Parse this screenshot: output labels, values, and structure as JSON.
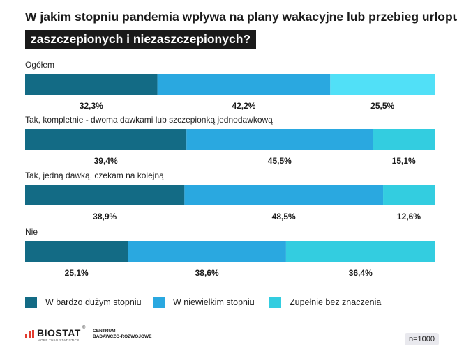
{
  "title": {
    "line1": "W jakim stopniu pandemia wpływa na plany wakacyjne lub przebieg urlopu",
    "line2": "zaszczepionych i niezaszczepionych?"
  },
  "colors": {
    "series": [
      "#136b85",
      "#2aa8e0",
      "#51e0f7",
      "#33cde0"
    ]
  },
  "chart_data": {
    "type": "bar",
    "orientation": "horizontal-stacked",
    "title": "W jakim stopniu pandemia wpływa na plany wakacyjne lub przebieg urlopu zaszczepionych i niezaszczepionych?",
    "categories": [
      "Ogółem",
      "Tak, kompletnie - dwoma dawkami lub szczepionką jednodawkową",
      "Tak, jedną dawką, czekam na kolejną",
      "Nie"
    ],
    "series": [
      {
        "name": "W bardzo dużym stopniu",
        "values": [
          32.3,
          39.4,
          38.9,
          25.1
        ],
        "labels": [
          "32,3%",
          "39,4%",
          "38,9%",
          "25,1%"
        ]
      },
      {
        "name": "W niewielkim stopniu",
        "values": [
          42.2,
          45.5,
          48.5,
          38.6
        ],
        "labels": [
          "42,2%",
          "45,5%",
          "48,5%",
          "38,6%"
        ]
      },
      {
        "name": "Zupełnie bez znaczenia",
        "values": [
          25.5,
          15.1,
          12.6,
          36.4
        ],
        "labels": [
          "25,5%",
          "15,1%",
          "12,6%",
          "36,4%"
        ]
      }
    ],
    "xlim": [
      0,
      100
    ],
    "unit": "%"
  },
  "legend": {
    "items": [
      "W bardzo dużym stopniu",
      "W niewielkim stopniu",
      "Zupełnie bez znaczenia"
    ]
  },
  "footer": {
    "brand": "BIOSTAT",
    "registered": "®",
    "tagline": "MORE THAN STATISTICS",
    "sub_line1": "CENTRUM",
    "sub_line2": "BADAWCZO-ROZWOJOWE",
    "sample": "n=1000"
  }
}
